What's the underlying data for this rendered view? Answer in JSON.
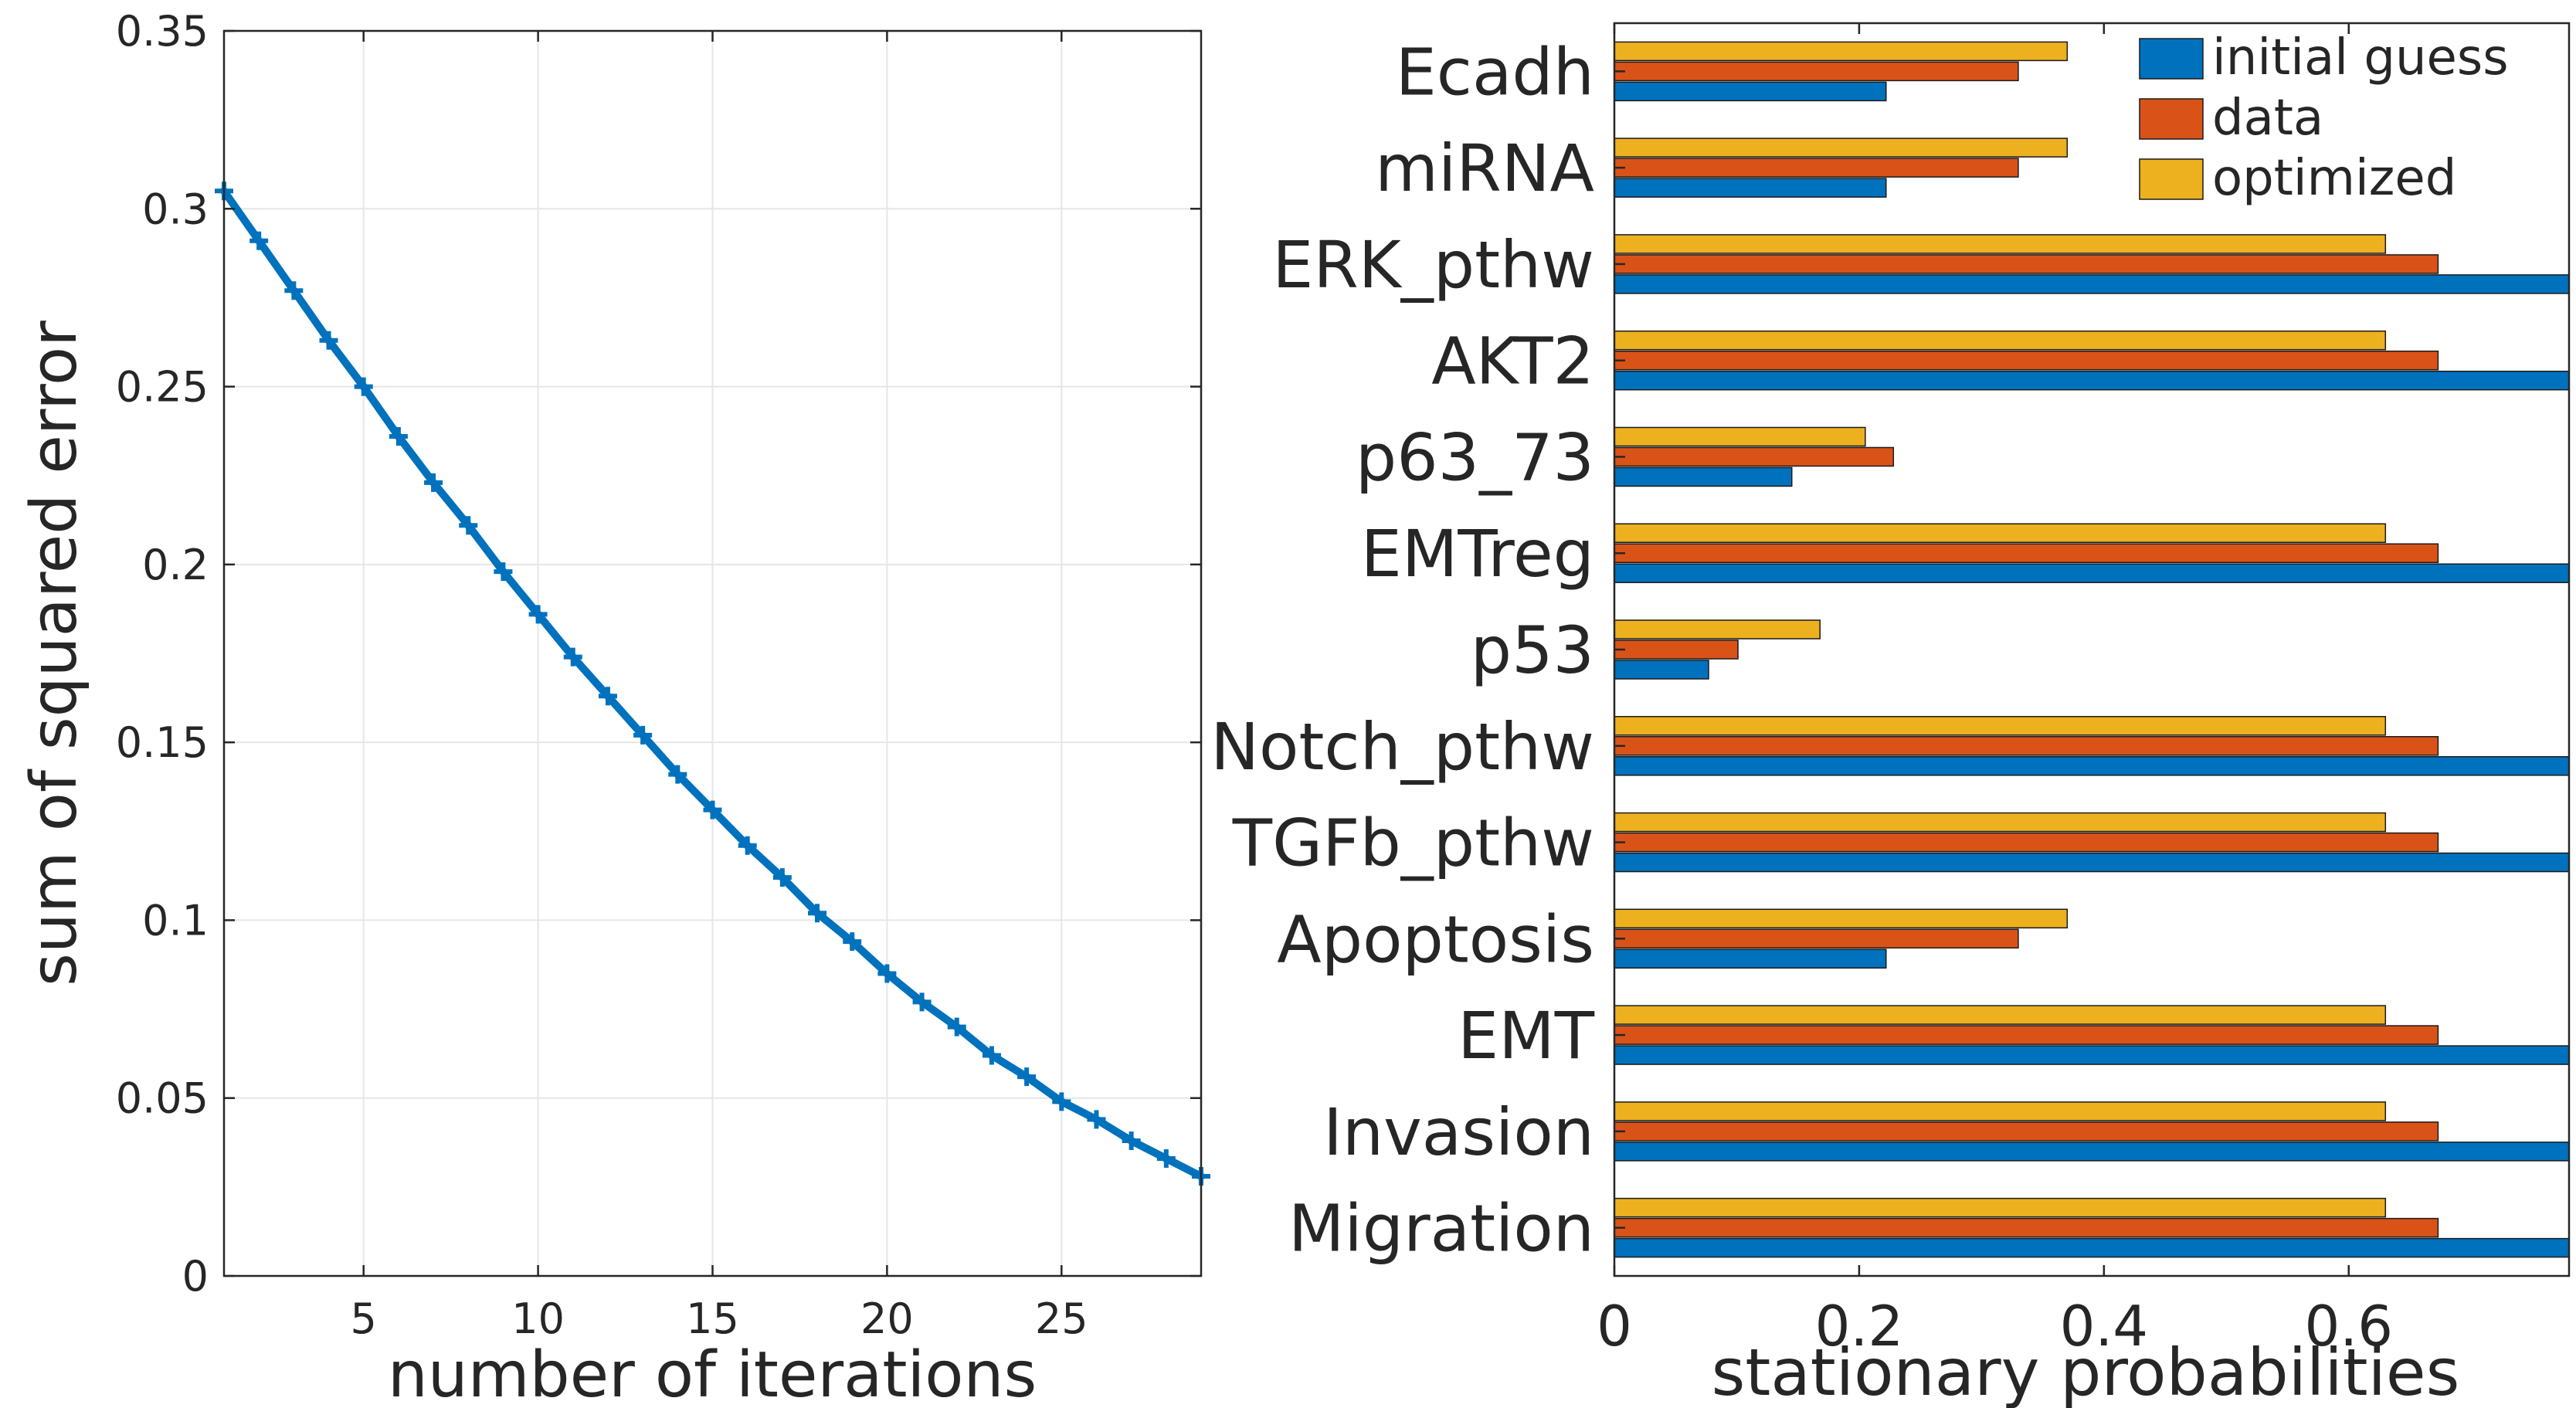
{
  "chart_data": [
    {
      "type": "line",
      "xlabel": "number of iterations",
      "ylabel": "sum of squared error",
      "xlim": [
        1,
        29
      ],
      "ylim": [
        0,
        0.35
      ],
      "x_ticks": [
        5,
        10,
        15,
        20,
        25
      ],
      "y_ticks": [
        0,
        0.05,
        0.1,
        0.15,
        0.2,
        0.25,
        0.3,
        0.35
      ],
      "x_tick_labels": [
        "5",
        "10",
        "15",
        "20",
        "25"
      ],
      "y_tick_labels": [
        "0",
        "0.05",
        "0.1",
        "0.15",
        "0.2",
        "0.25",
        "0.3",
        "0.35"
      ],
      "grid": true,
      "series": [
        {
          "color": "#0072BD",
          "marker": "plus",
          "x": [
            1,
            2,
            3,
            4,
            5,
            6,
            7,
            8,
            9,
            10,
            11,
            12,
            13,
            14,
            15,
            16,
            17,
            18,
            19,
            20,
            21,
            22,
            23,
            24,
            25,
            26,
            27,
            28,
            29
          ],
          "y": [
            0.305,
            0.291,
            0.277,
            0.263,
            0.25,
            0.236,
            0.223,
            0.211,
            0.198,
            0.186,
            0.174,
            0.163,
            0.152,
            0.141,
            0.131,
            0.121,
            0.112,
            0.102,
            0.094,
            0.085,
            0.077,
            0.07,
            0.062,
            0.056,
            0.049,
            0.044,
            0.038,
            0.033,
            0.028
          ]
        }
      ]
    },
    {
      "type": "bar",
      "orientation": "horizontal",
      "xlabel": "stationary probabilities",
      "ylabel": "",
      "xlim": [
        0,
        0.78
      ],
      "x_ticks": [
        0,
        0.2,
        0.4,
        0.6
      ],
      "x_tick_labels": [
        "0",
        "0.2",
        "0.4",
        "0.6"
      ],
      "grid": false,
      "legend_position": "top-right",
      "categories": [
        "Ecadh",
        "miRNA",
        "ERK_pthw",
        "AKT2",
        "p63_73",
        "EMTreg",
        "p53",
        "Notch_pthw",
        "TGFb_pthw",
        "Apoptosis",
        "EMT",
        "Invasion",
        "Migration"
      ],
      "series": [
        {
          "name": "initial guess",
          "color": "#0072BD",
          "values": [
            0.222,
            0.222,
            0.78,
            0.78,
            0.145,
            0.78,
            0.077,
            0.78,
            0.78,
            0.222,
            0.78,
            0.78,
            0.78
          ]
        },
        {
          "name": "data",
          "color": "#D95319",
          "values": [
            0.33,
            0.33,
            0.673,
            0.673,
            0.228,
            0.673,
            0.101,
            0.673,
            0.673,
            0.33,
            0.673,
            0.673,
            0.673
          ]
        },
        {
          "name": "optimized",
          "color": "#EDB120",
          "values": [
            0.37,
            0.37,
            0.63,
            0.63,
            0.205,
            0.63,
            0.168,
            0.63,
            0.63,
            0.37,
            0.63,
            0.63,
            0.63
          ]
        }
      ]
    }
  ]
}
